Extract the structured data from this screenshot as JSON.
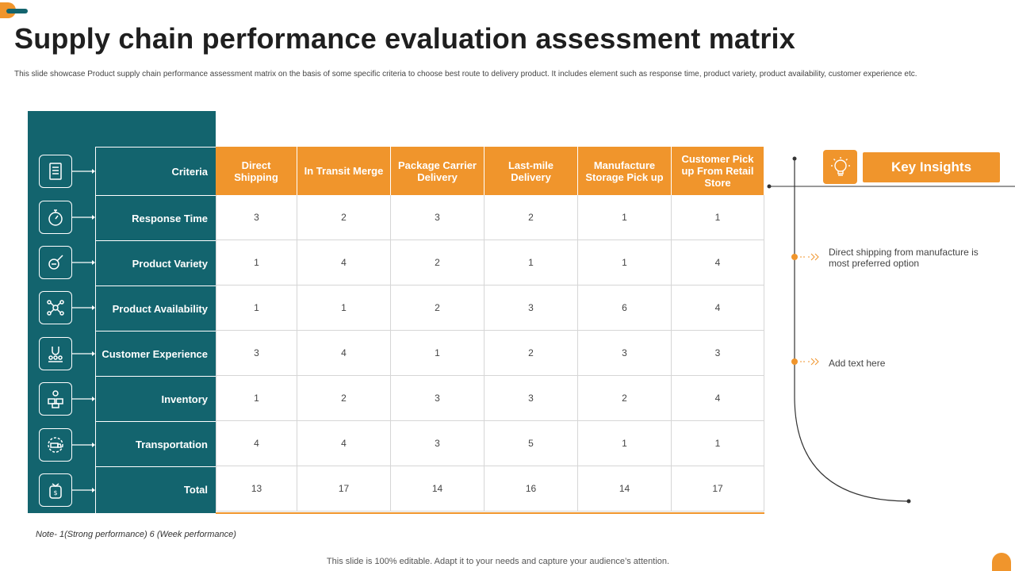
{
  "title": "Supply chain performance evaluation assessment matrix",
  "subtitle": "This slide showcase Product supply chain performance assessment matrix on the basis of some specific criteria to choose best route to delivery product. It includes element such as response time, product variety, product availability, customer experience etc.",
  "matrix": {
    "criteria_header": "Criteria",
    "columns": [
      "Direct Shipping",
      "In Transit Merge",
      "Package Carrier Delivery",
      "Last-mile Delivery",
      "Manufacture Storage Pick up",
      "Customer Pick up From Retail Store"
    ],
    "rows": [
      {
        "label": "Response Time",
        "icon": "stopwatch-icon",
        "values": [
          "3",
          "2",
          "3",
          "2",
          "1",
          "1"
        ]
      },
      {
        "label": "Product Variety",
        "icon": "magnifier-icon",
        "values": [
          "1",
          "4",
          "2",
          "1",
          "1",
          "4"
        ]
      },
      {
        "label": "Product Availability",
        "icon": "network-icon",
        "values": [
          "1",
          "1",
          "2",
          "3",
          "6",
          "4"
        ]
      },
      {
        "label": "Customer Experience",
        "icon": "customer-magnet-icon",
        "values": [
          "3",
          "4",
          "1",
          "2",
          "3",
          "3"
        ]
      },
      {
        "label": "Inventory",
        "icon": "boxes-gear-icon",
        "values": [
          "1",
          "2",
          "3",
          "3",
          "2",
          "4"
        ]
      },
      {
        "label": "Transportation",
        "icon": "truck-gear-icon",
        "values": [
          "4",
          "4",
          "3",
          "5",
          "1",
          "1"
        ]
      },
      {
        "label": "Total",
        "icon": "money-bag-icon",
        "values": [
          "13",
          "17",
          "14",
          "16",
          "14",
          "17"
        ]
      }
    ]
  },
  "note": "Note- 1(Strong performance) 6 (Week performance)",
  "footer": "This slide is 100% editable. Adapt it to your needs and capture your audience’s attention.",
  "insights": {
    "title": "Key Insights",
    "icon": "lightbulb-brain-icon",
    "items": [
      "Direct shipping from manufacture is most preferred option",
      "Add text here"
    ]
  },
  "colors": {
    "teal": "#13646e",
    "orange": "#f0952c"
  }
}
